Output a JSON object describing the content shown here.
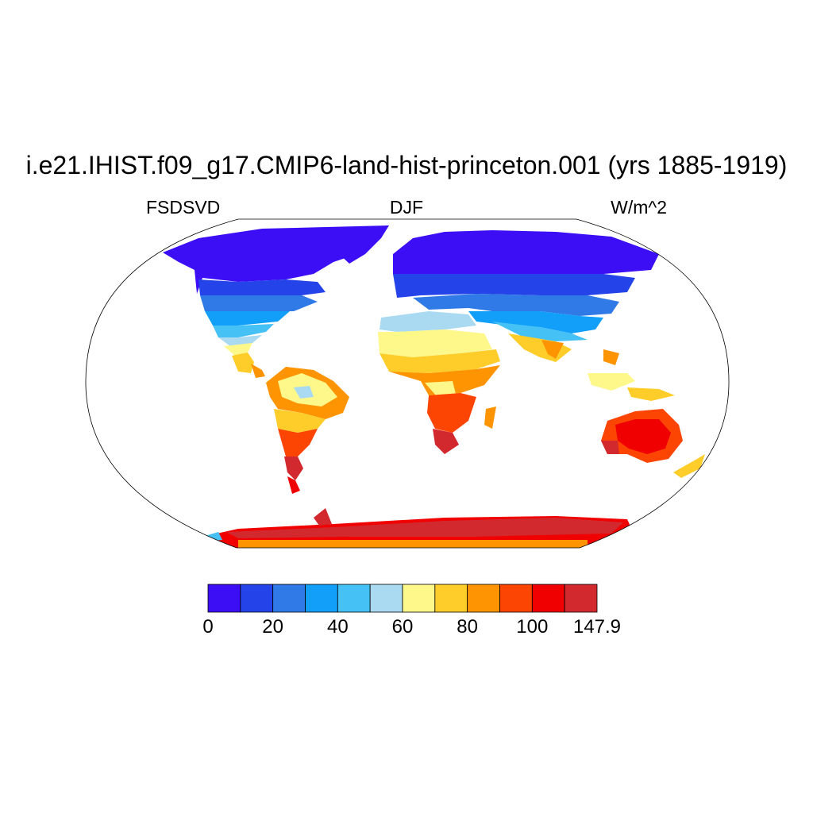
{
  "title": "i.e21.IHIST.f09_g17.CMIP6-land-hist-princeton.001 (yrs 1885-1919)",
  "left_label": "FSDSVD",
  "center_label": "DJF",
  "right_label": "W/m^2",
  "colorbar": {
    "colors": [
      "#3b0ef5",
      "#2444ea",
      "#2f7ae6",
      "#129ffa",
      "#46c1f5",
      "#a9daf2",
      "#fef78a",
      "#fecd2a",
      "#fe9402",
      "#fd4503",
      "#f00000",
      "#d2292f"
    ],
    "tick_labels": [
      "0",
      "20",
      "40",
      "60",
      "80",
      "100",
      "147.9"
    ]
  },
  "map": {
    "projection": "Robinson",
    "variable": "FSDSVD",
    "season": "DJF",
    "units": "W/m^2",
    "range": [
      0,
      147.9
    ]
  }
}
